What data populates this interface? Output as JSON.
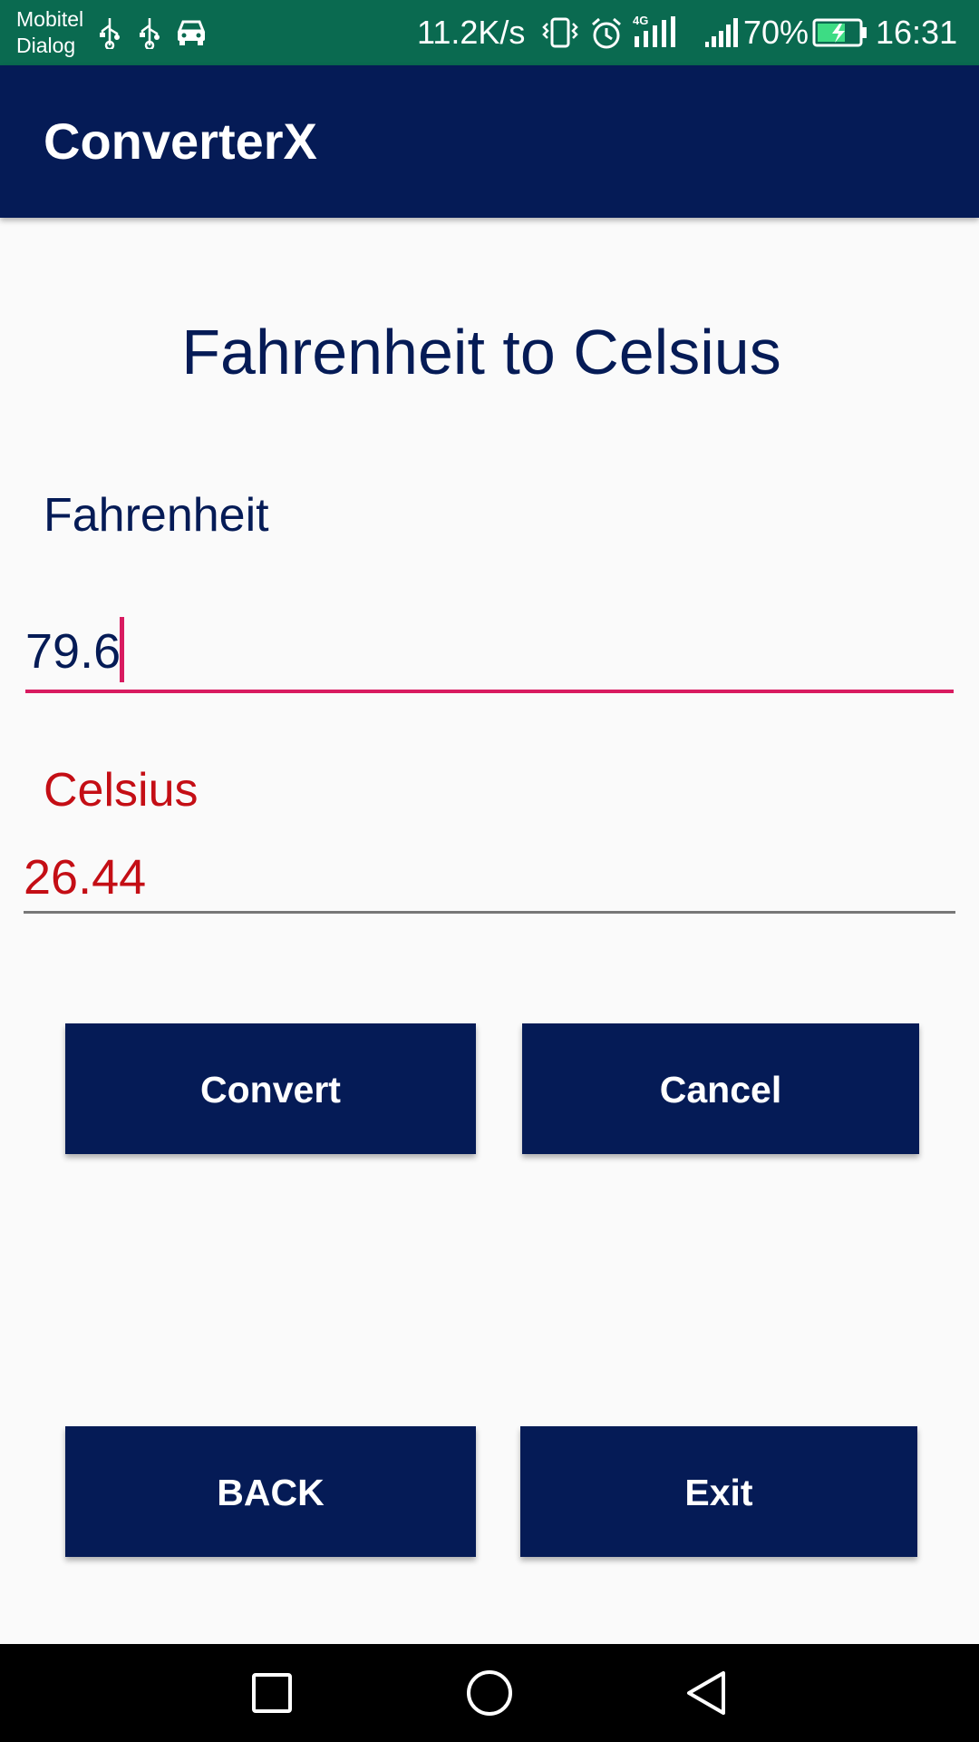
{
  "status_bar": {
    "carrier_line1": "Mobitel",
    "carrier_line2": "Dialog",
    "net_speed": "11.2K/s",
    "network_type": "4G",
    "battery_percent": "70%",
    "time": "16:31",
    "left_icons": [
      "usb-icon",
      "usb-icon",
      "car-icon"
    ],
    "right_icons": [
      "vibrate-icon",
      "alarm-icon",
      "signal-icon",
      "signal-icon",
      "battery-charging-icon"
    ]
  },
  "app_bar": {
    "title": "ConverterX"
  },
  "content": {
    "title": "Fahrenheit to Celsius",
    "fahrenheit_label": "Fahrenheit",
    "fahrenheit_value": "79.6",
    "celsius_label": "Celsius",
    "celsius_value": "26.44"
  },
  "buttons": {
    "convert": "Convert",
    "cancel": "Cancel",
    "back": "BACK",
    "exit": "Exit"
  },
  "nav_bar": {
    "icons": [
      "recents-square-icon",
      "home-circle-icon",
      "back-triangle-icon"
    ]
  },
  "colors": {
    "status_bar": "#0a6a50",
    "primary": "#051b56",
    "accent": "#d81b60",
    "result": "#c40e15",
    "background": "#fafafa"
  }
}
